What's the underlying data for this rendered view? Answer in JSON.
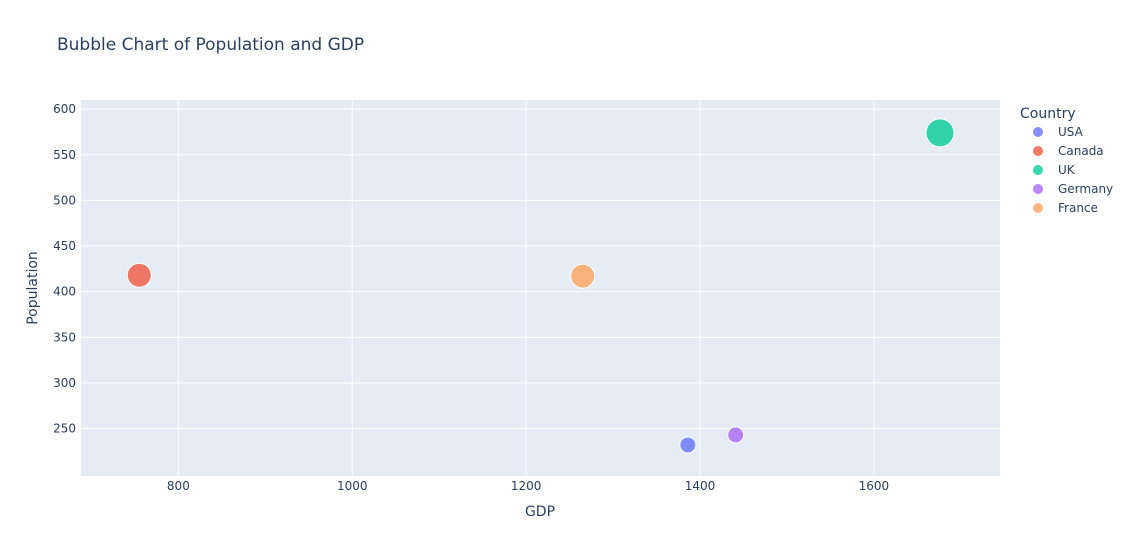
{
  "chart_data": {
    "type": "scatter",
    "title": "Bubble Chart of Population and GDP",
    "xlabel": "GDP",
    "ylabel": "Population",
    "xlim": [
      688,
      1745
    ],
    "ylim": [
      198,
      610
    ],
    "x_ticks": [
      800,
      1000,
      1200,
      1400,
      1600
    ],
    "y_ticks": [
      250,
      300,
      350,
      400,
      450,
      500,
      550,
      600
    ],
    "grid": true,
    "legend": {
      "title": "Country",
      "placement": "right"
    },
    "series": [
      {
        "name": "USA",
        "color": "#636efa",
        "x": [
          1386
        ],
        "y": [
          232
        ],
        "size": [
          16
        ]
      },
      {
        "name": "Canada",
        "color": "#EF553B",
        "x": [
          755
        ],
        "y": [
          418
        ],
        "size": [
          24
        ]
      },
      {
        "name": "UK",
        "color": "#00cc96",
        "x": [
          1676
        ],
        "y": [
          574
        ],
        "size": [
          28
        ]
      },
      {
        "name": "Germany",
        "color": "#ab63fa",
        "x": [
          1441
        ],
        "y": [
          243
        ],
        "size": [
          16
        ]
      },
      {
        "name": "France",
        "color": "#FFA15A",
        "x": [
          1265
        ],
        "y": [
          417
        ],
        "size": [
          24
        ]
      }
    ]
  }
}
